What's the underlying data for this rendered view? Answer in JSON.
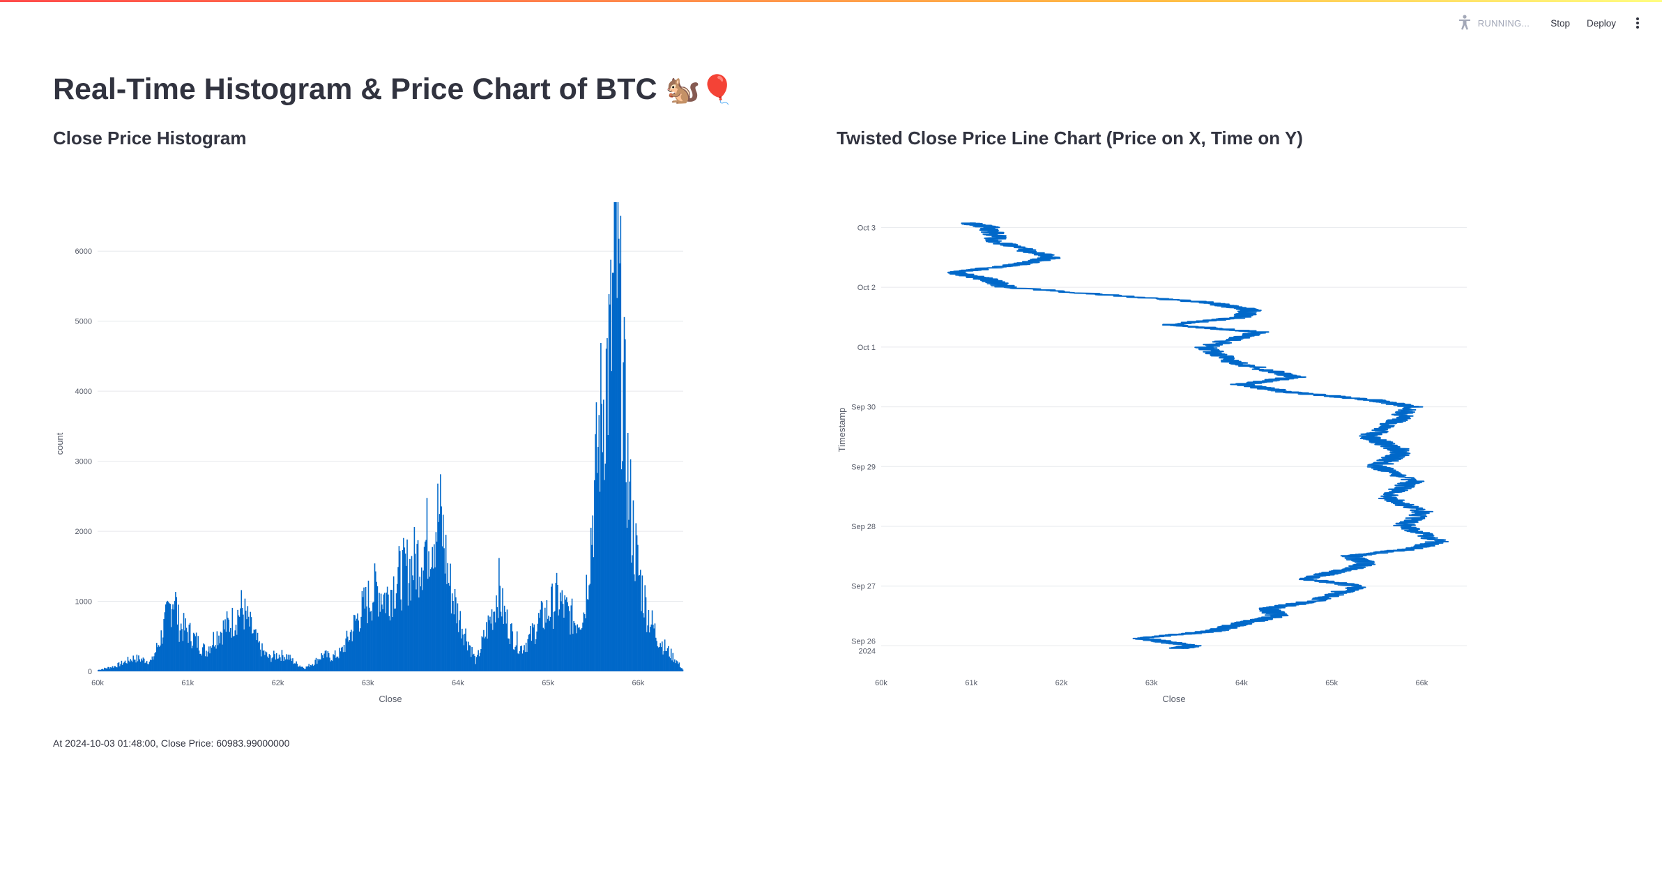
{
  "header": {
    "status_text": "RUNNING...",
    "stop_label": "Stop",
    "deploy_label": "Deploy",
    "accent_gradient": [
      "#ff4b4b",
      "#ffbd45",
      "#fffd80"
    ]
  },
  "page": {
    "title": "Real-Time Histogram & Price Chart of BTC",
    "title_emoji": "🐿️🎈"
  },
  "histogram_section": {
    "title": "Close Price Histogram"
  },
  "line_section": {
    "title": "Twisted Close Price Line Chart (Price on X, Time on Y)"
  },
  "status": {
    "text": "At 2024-10-03 01:48:00, Close Price: 60983.99000000"
  },
  "chart_data": [
    {
      "type": "bar",
      "title": "Close Price Histogram",
      "xlabel": "Close",
      "ylabel": "count",
      "xlim": [
        60000,
        66500
      ],
      "ylim": [
        0,
        6500
      ],
      "x_tick_labels": [
        "60k",
        "61k",
        "62k",
        "63k",
        "64k",
        "65k",
        "66k"
      ],
      "y_tick_labels": [
        "0",
        "1000",
        "2000",
        "3000",
        "4000",
        "5000",
        "6000"
      ],
      "bar_color": "#0068c9",
      "grid": true,
      "legend": "none",
      "envelope": [
        [
          60000,
          20
        ],
        [
          60200,
          80
        ],
        [
          60400,
          200
        ],
        [
          60600,
          150
        ],
        [
          60700,
          500
        ],
        [
          60800,
          950
        ],
        [
          60850,
          1200
        ],
        [
          60900,
          700
        ],
        [
          61000,
          600
        ],
        [
          61100,
          450
        ],
        [
          61200,
          300
        ],
        [
          61300,
          520
        ],
        [
          61400,
          650
        ],
        [
          61500,
          750
        ],
        [
          61600,
          950
        ],
        [
          61700,
          650
        ],
        [
          61800,
          350
        ],
        [
          61900,
          200
        ],
        [
          62000,
          250
        ],
        [
          62100,
          230
        ],
        [
          62200,
          120
        ],
        [
          62300,
          50
        ],
        [
          62400,
          130
        ],
        [
          62500,
          250
        ],
        [
          62600,
          210
        ],
        [
          62700,
          280
        ],
        [
          62800,
          550
        ],
        [
          62900,
          850
        ],
        [
          63000,
          1050
        ],
        [
          63100,
          1250
        ],
        [
          63200,
          1100
        ],
        [
          63300,
          1350
        ],
        [
          63500,
          1600
        ],
        [
          63600,
          1800
        ],
        [
          63700,
          2100
        ],
        [
          63800,
          2350
        ],
        [
          63900,
          1350
        ],
        [
          64000,
          850
        ],
        [
          64100,
          500
        ],
        [
          64200,
          140
        ],
        [
          64300,
          550
        ],
        [
          64400,
          950
        ],
        [
          64450,
          1300
        ],
        [
          64500,
          900
        ],
        [
          64600,
          550
        ],
        [
          64700,
          350
        ],
        [
          64800,
          500
        ],
        [
          64900,
          750
        ],
        [
          65000,
          900
        ],
        [
          65100,
          1100
        ],
        [
          65200,
          900
        ],
        [
          65300,
          750
        ],
        [
          65400,
          900
        ],
        [
          65500,
          2400
        ],
        [
          65550,
          3300
        ],
        [
          65600,
          4000
        ],
        [
          65700,
          4900
        ],
        [
          65750,
          6450
        ],
        [
          65800,
          5200
        ],
        [
          65850,
          3800
        ],
        [
          65900,
          2600
        ],
        [
          66000,
          1500
        ],
        [
          66100,
          900
        ],
        [
          66200,
          550
        ],
        [
          66300,
          350
        ],
        [
          66400,
          200
        ],
        [
          66500,
          20
        ]
      ]
    },
    {
      "type": "line",
      "title": "Twisted Close Price Line Chart (Price on X, Time on Y)",
      "xlabel": "Close",
      "ylabel": "Timestamp",
      "xlim": [
        60000,
        66500
      ],
      "x_tick_labels": [
        "60k",
        "61k",
        "62k",
        "63k",
        "64k",
        "65k",
        "66k"
      ],
      "y_tick_labels": [
        "Sep 26\n2024",
        "Sep 27",
        "Sep 28",
        "Sep 29",
        "Sep 30",
        "Oct 1",
        "Oct 2",
        "Oct 3"
      ],
      "ylim": [
        "2024-09-25T23:00",
        "2024-10-03T01:48"
      ],
      "line_color": "#0068c9",
      "grid": true,
      "legend": "none",
      "points": [
        [
          "2024-09-25T23:00",
          63300
        ],
        [
          "2024-09-26T00:00",
          63450
        ],
        [
          "2024-09-26T03:00",
          62900
        ],
        [
          "2024-09-26T06:00",
          63700
        ],
        [
          "2024-09-26T09:00",
          64000
        ],
        [
          "2024-09-26T12:00",
          64400
        ],
        [
          "2024-09-26T15:00",
          64300
        ],
        [
          "2024-09-26T18:00",
          64800
        ],
        [
          "2024-09-27T00:00",
          65300
        ],
        [
          "2024-09-27T03:00",
          64700
        ],
        [
          "2024-09-27T06:00",
          65100
        ],
        [
          "2024-09-27T09:00",
          65400
        ],
        [
          "2024-09-27T12:00",
          65200
        ],
        [
          "2024-09-27T15:00",
          65900
        ],
        [
          "2024-09-27T18:00",
          66200
        ],
        [
          "2024-09-28T00:00",
          65800
        ],
        [
          "2024-09-28T06:00",
          66000
        ],
        [
          "2024-09-28T12:00",
          65600
        ],
        [
          "2024-09-28T18:00",
          65900
        ],
        [
          "2024-09-29T00:00",
          65500
        ],
        [
          "2024-09-29T06:00",
          65800
        ],
        [
          "2024-09-29T12:00",
          65400
        ],
        [
          "2024-09-29T18:00",
          65700
        ],
        [
          "2024-09-30T00:00",
          65900
        ],
        [
          "2024-09-30T03:00",
          65400
        ],
        [
          "2024-09-30T06:00",
          64500
        ],
        [
          "2024-09-30T09:00",
          64000
        ],
        [
          "2024-09-30T12:00",
          64600
        ],
        [
          "2024-09-30T18:00",
          63900
        ],
        [
          "2024-10-01T00:00",
          63600
        ],
        [
          "2024-10-01T06:00",
          64200
        ],
        [
          "2024-10-01T09:00",
          63200
        ],
        [
          "2024-10-01T12:00",
          64000
        ],
        [
          "2024-10-01T15:00",
          64100
        ],
        [
          "2024-10-01T18:00",
          63600
        ],
        [
          "2024-10-02T00:00",
          61400
        ],
        [
          "2024-10-02T03:00",
          61200
        ],
        [
          "2024-10-02T06:00",
          60800
        ],
        [
          "2024-10-02T09:00",
          61500
        ],
        [
          "2024-10-02T12:00",
          61900
        ],
        [
          "2024-10-02T18:00",
          61300
        ],
        [
          "2024-10-03T00:00",
          61200
        ],
        [
          "2024-10-03T01:48",
          60984
        ]
      ]
    }
  ]
}
